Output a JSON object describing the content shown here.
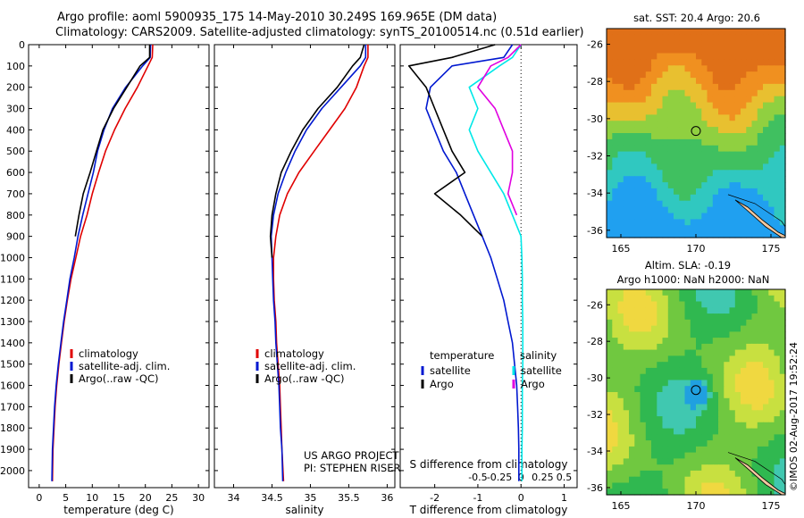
{
  "header": {
    "line1": "Argo profile: aoml 5900935_175 14-May-2010 30.249S 169.965E (DM data)",
    "line2": "Climatology: CARS2009. Satellite-adjusted climatology: synTS_20100514.nc (0.51d earlier)"
  },
  "colors": {
    "climatology": "#e00000",
    "satellite": "#0018d0",
    "argo": "#000000",
    "salinity_sat": "#00e8e8",
    "salinity_argo": "#e000e0"
  },
  "chart_data": [
    {
      "type": "line",
      "xlabel": "temperature (deg C)",
      "ylabel": "",
      "xlim": [
        -2,
        32
      ],
      "ylim": [
        2080,
        0
      ],
      "xticks": [
        0,
        5,
        10,
        15,
        20,
        25,
        30
      ],
      "yticks": [
        0,
        100,
        200,
        300,
        400,
        500,
        600,
        700,
        800,
        900,
        1000,
        1100,
        1200,
        1300,
        1400,
        1500,
        1600,
        1700,
        1800,
        1900,
        2000
      ],
      "legend": [
        "climatology",
        "satellite-adj. clim.",
        "Argo(..raw -QC)"
      ],
      "series": [
        {
          "name": "climatology",
          "color": "#e00000",
          "x": [
            21.4,
            21.3,
            20.5,
            18.5,
            16.2,
            14.2,
            12.5,
            11.2,
            10.0,
            9.0,
            7.8,
            6.9,
            6.0,
            5.3,
            4.7,
            4.2,
            3.7,
            3.3,
            3.0,
            2.8,
            2.6,
            2.5
          ],
          "y": [
            0,
            60,
            100,
            200,
            300,
            400,
            500,
            600,
            700,
            800,
            900,
            1000,
            1100,
            1200,
            1300,
            1400,
            1500,
            1600,
            1700,
            1800,
            1900,
            2050
          ]
        },
        {
          "name": "satellite-adj. clim.",
          "color": "#0018d0",
          "x": [
            21.0,
            20.9,
            19.5,
            16.3,
            13.8,
            12.2,
            11.0,
            10.2,
            9.2,
            8.2,
            7.3,
            6.6,
            5.8,
            5.2,
            4.6,
            4.1,
            3.6,
            3.2,
            2.9,
            2.7,
            2.5,
            2.4
          ],
          "y": [
            0,
            60,
            100,
            200,
            300,
            400,
            500,
            600,
            700,
            800,
            900,
            1000,
            1100,
            1200,
            1300,
            1400,
            1500,
            1600,
            1700,
            1800,
            1900,
            2050
          ]
        },
        {
          "name": "Argo(..raw -QC)",
          "color": "#000000",
          "x": [
            20.8,
            20.8,
            19.0,
            16.5,
            14.0,
            12.0,
            10.8,
            9.6,
            8.3,
            7.5,
            6.8
          ],
          "y": [
            0,
            60,
            100,
            200,
            300,
            400,
            500,
            600,
            700,
            800,
            900
          ]
        }
      ]
    },
    {
      "type": "line",
      "xlabel": "salinity",
      "ylabel": "",
      "xlim": [
        33.75,
        36.1
      ],
      "ylim": [
        2080,
        0
      ],
      "xticks": [
        34,
        34.5,
        35,
        35.5,
        36
      ],
      "legend": [
        "climatology",
        "satellite-adj. clim.",
        "Argo(..raw -QC)"
      ],
      "annotation": [
        "US ARGO PROJECT",
        "PI: STEPHEN RISER"
      ],
      "series": [
        {
          "name": "climatology",
          "color": "#e00000",
          "x": [
            35.75,
            35.75,
            35.7,
            35.6,
            35.45,
            35.25,
            35.05,
            34.85,
            34.7,
            34.6,
            34.55,
            34.52,
            34.52,
            34.53,
            34.55,
            34.56,
            34.58,
            34.6,
            34.61,
            34.62,
            34.63,
            34.65
          ],
          "y": [
            0,
            60,
            100,
            200,
            300,
            400,
            500,
            600,
            700,
            800,
            900,
            1000,
            1100,
            1200,
            1300,
            1400,
            1500,
            1600,
            1700,
            1800,
            1900,
            2050
          ]
        },
        {
          "name": "satellite-adj. clim.",
          "color": "#0018d0",
          "x": [
            35.72,
            35.72,
            35.65,
            35.4,
            35.15,
            34.95,
            34.8,
            34.68,
            34.58,
            34.52,
            34.49,
            34.5,
            34.51,
            34.52,
            34.54,
            34.55,
            34.57,
            34.59,
            34.6,
            34.61,
            34.63,
            34.64
          ],
          "y": [
            0,
            60,
            100,
            200,
            300,
            400,
            500,
            600,
            700,
            800,
            900,
            1000,
            1100,
            1200,
            1300,
            1400,
            1500,
            1600,
            1700,
            1800,
            1900,
            2050
          ]
        },
        {
          "name": "Argo(..raw -QC)",
          "color": "#000000",
          "x": [
            35.7,
            35.65,
            35.55,
            35.35,
            35.1,
            34.9,
            34.75,
            34.62,
            34.55,
            34.5,
            34.48,
            34.5
          ],
          "y": [
            0,
            60,
            100,
            200,
            300,
            400,
            500,
            600,
            700,
            800,
            900,
            1000
          ]
        }
      ]
    },
    {
      "type": "line",
      "xlabel": "T difference from climatology",
      "xlabel2": "S difference from climatology",
      "xlim": [
        -2.8,
        1.3
      ],
      "ylim": [
        2080,
        0
      ],
      "xticks": [
        -2,
        -1,
        0,
        1
      ],
      "xticks_s": [
        "-0.5",
        "-0.25",
        "0",
        "0.25",
        "0.5"
      ],
      "legend": {
        "temperature": "temperature",
        "salinity": "salinity",
        "t_sat": "satellite",
        "t_argo": "Argo",
        "s_sat": "satellite",
        "s_argo": "Argo"
      },
      "series": [
        {
          "name": "satellite",
          "color": "#0018d0",
          "x": [
            -0.2,
            -0.4,
            -1.6,
            -2.1,
            -2.2,
            -2.0,
            -1.8,
            -1.5,
            -1.3,
            -1.1,
            -0.9,
            -0.7,
            -0.55,
            -0.4,
            -0.3,
            -0.2,
            -0.15,
            -0.1,
            -0.08,
            -0.06,
            -0.05,
            -0.05
          ],
          "y": [
            0,
            60,
            100,
            200,
            300,
            400,
            500,
            600,
            700,
            800,
            900,
            1000,
            1100,
            1200,
            1300,
            1400,
            1500,
            1600,
            1700,
            1800,
            1900,
            2050
          ]
        },
        {
          "name": "Argo",
          "color": "#000000",
          "x": [
            -0.6,
            -1.6,
            -2.6,
            -2.2,
            -2.0,
            -1.8,
            -1.6,
            -1.3,
            -2.0,
            -1.4,
            -0.9
          ],
          "y": [
            0,
            60,
            100,
            200,
            300,
            400,
            500,
            600,
            700,
            800,
            900
          ]
        },
        {
          "name": "satellite",
          "color": "#00e8e8",
          "x": [
            0,
            -0.2,
            -0.5,
            -1.2,
            -1.0,
            -1.2,
            -1.0,
            -0.7,
            -0.4,
            -0.2,
            0.0,
            0.02,
            0.03,
            0.03,
            0.04,
            0.04,
            0.04,
            0.03,
            0.03,
            0.03,
            0.02,
            0.02
          ],
          "y": [
            0,
            60,
            100,
            200,
            300,
            400,
            500,
            600,
            700,
            800,
            900,
            1000,
            1100,
            1200,
            1300,
            1400,
            1500,
            1600,
            1700,
            1800,
            1900,
            2050
          ]
        },
        {
          "name": "Argo",
          "color": "#e000e0",
          "x": [
            0,
            -0.3,
            -0.7,
            -1.0,
            -0.6,
            -0.4,
            -0.2,
            -0.2,
            -0.3,
            -0.1
          ],
          "y": [
            0,
            60,
            100,
            200,
            300,
            400,
            500,
            600,
            700,
            800
          ]
        }
      ]
    },
    {
      "type": "heatmap",
      "title": "sat. SST: 20.4 Argo: 20.6",
      "xticks": [
        "165",
        "170",
        "175"
      ],
      "yticks": [
        "-26",
        "-28",
        "-30",
        "-32",
        "-34",
        "-36"
      ]
    },
    {
      "type": "heatmap",
      "title": "Altim. SLA: -0.19",
      "subtitle": "Argo h1000: NaN h2000: NaN",
      "xticks": [
        "165",
        "170",
        "175"
      ],
      "yticks": [
        "-26",
        "-28",
        "-30",
        "-32",
        "-34",
        "-36"
      ]
    }
  ],
  "credit": "©IMOS 02-Aug-2017 19:52:24"
}
